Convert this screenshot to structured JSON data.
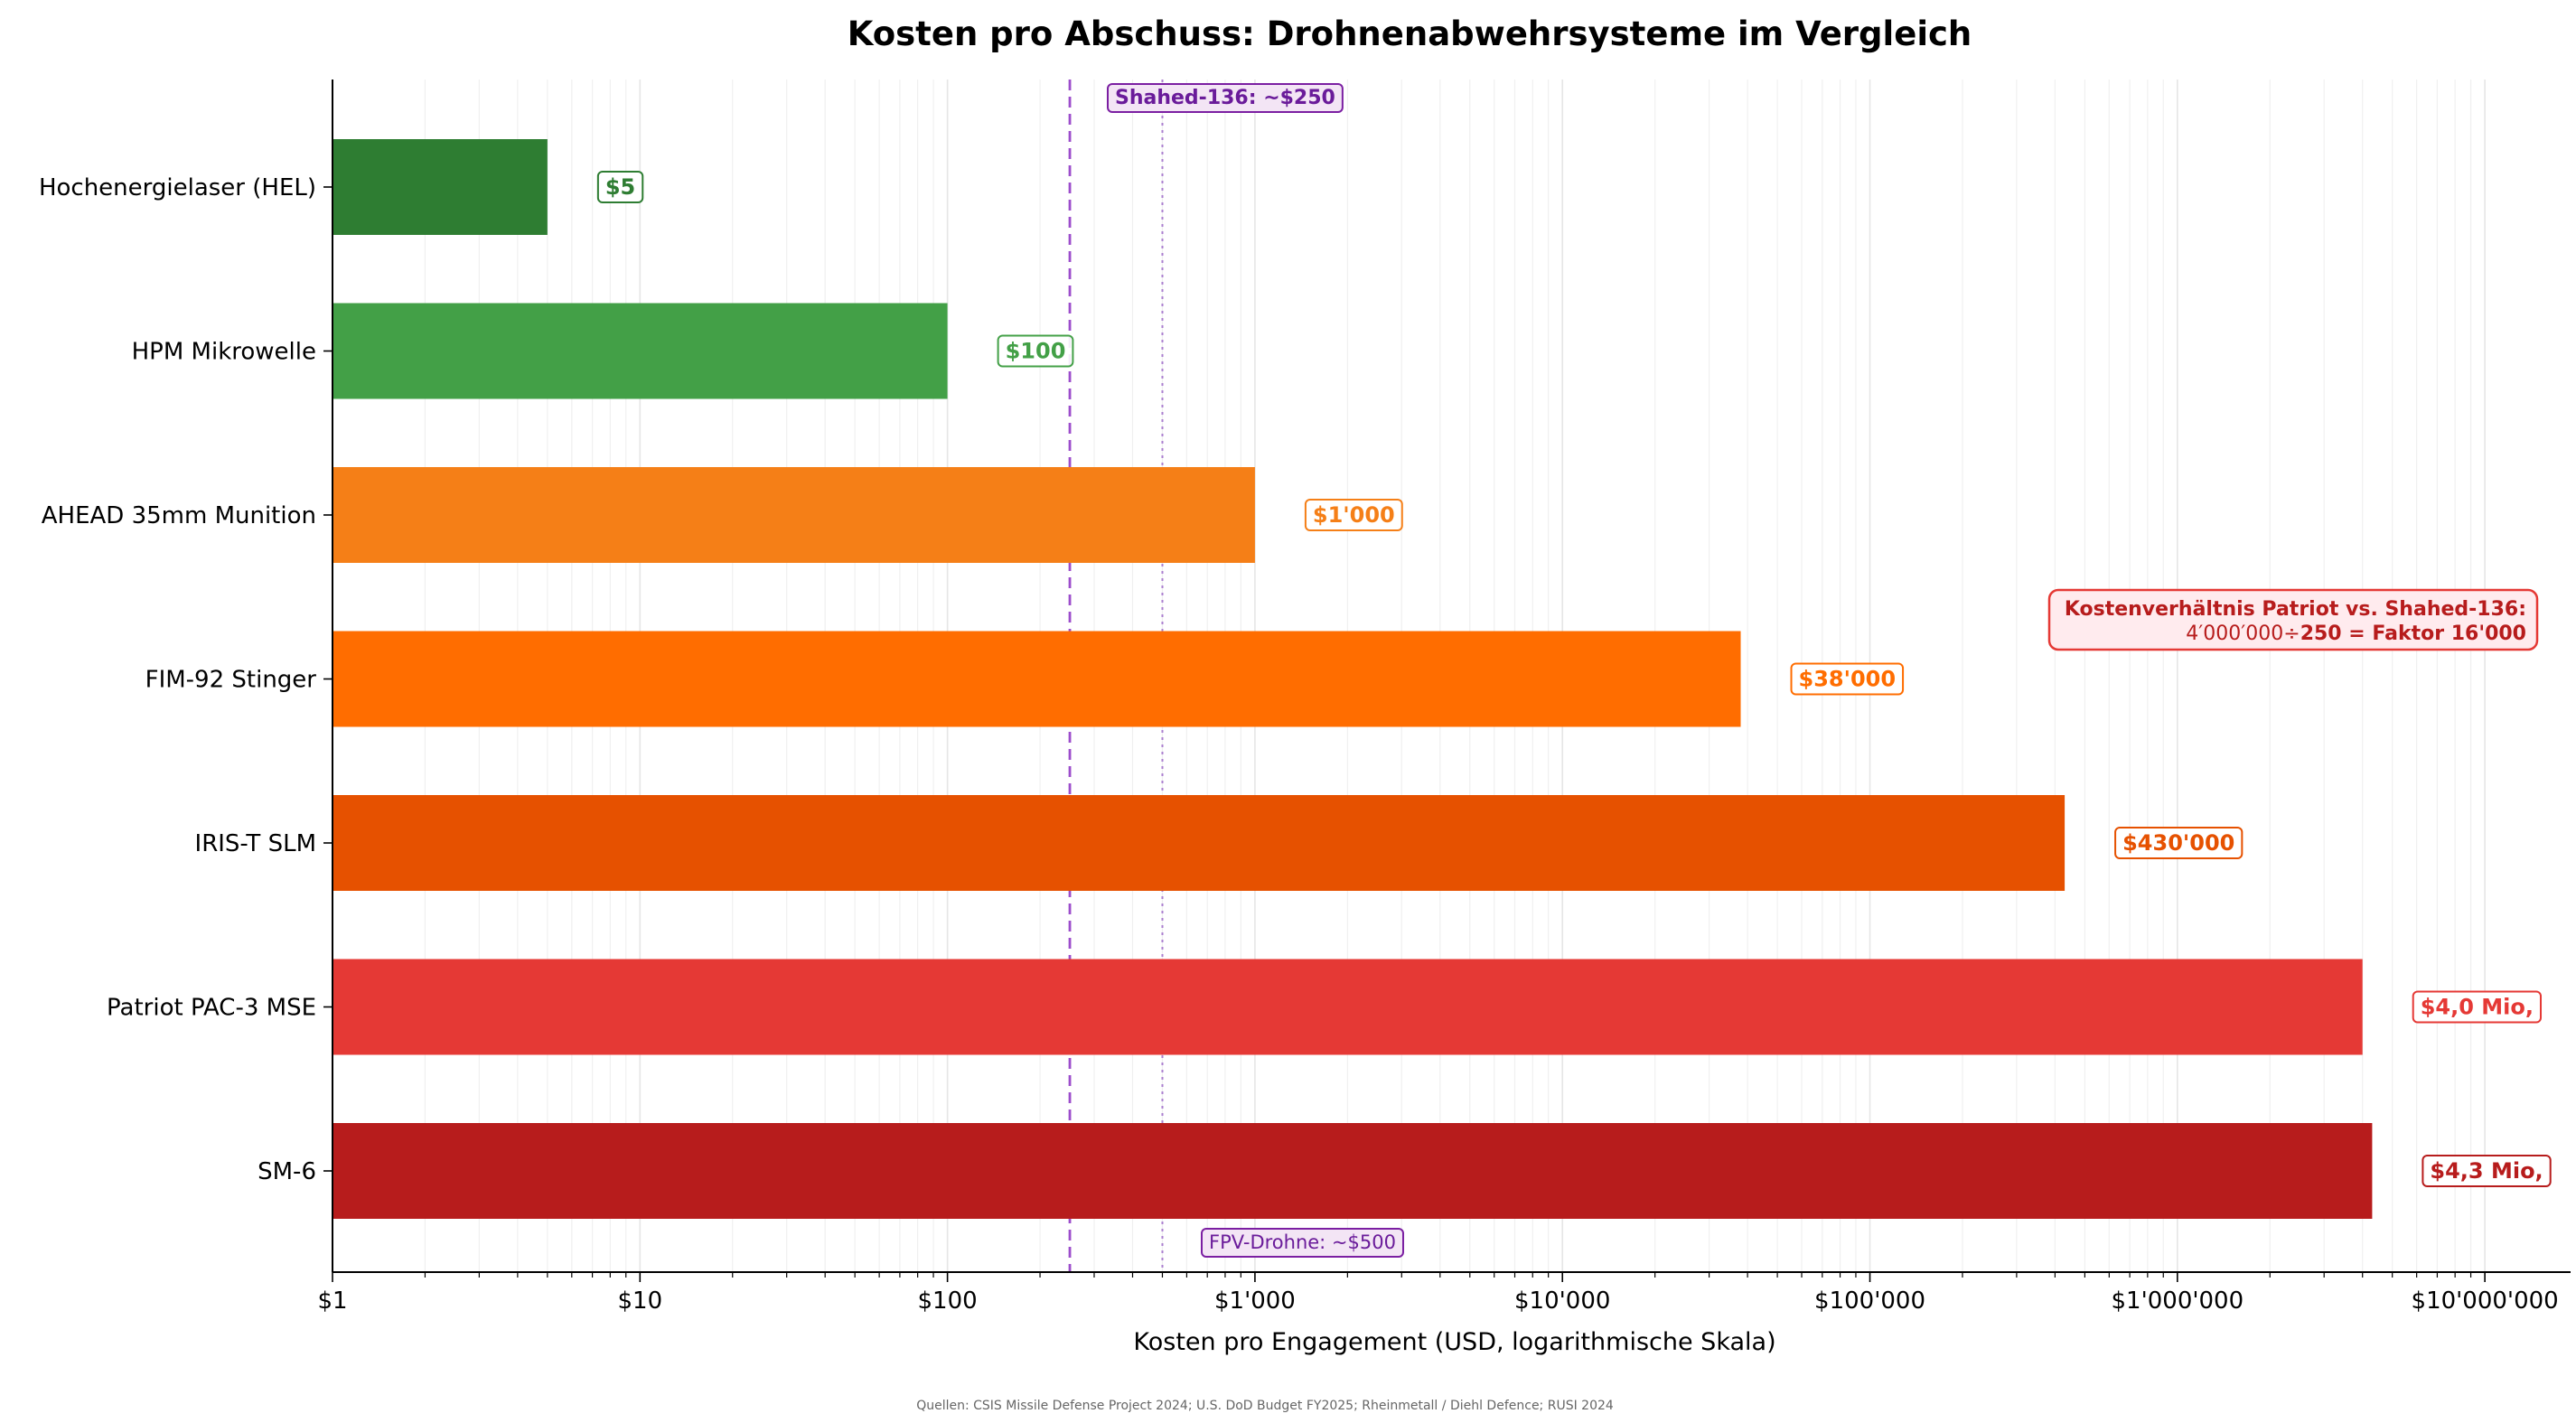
{
  "chart_data": {
    "type": "bar",
    "orientation": "horizontal",
    "title": "Kosten pro Abschuss: Drohnenabwehrsysteme im Vergleich",
    "xlabel": "Kosten pro Engagement (USD, logarithmische Skala)",
    "ylabel": "",
    "xscale": "log",
    "xlim": [
      1,
      19000000
    ],
    "grid": "x minor and major, light",
    "xticks": [
      {
        "value": 1,
        "label": "$1"
      },
      {
        "value": 10,
        "label": "$10"
      },
      {
        "value": 100,
        "label": "$100"
      },
      {
        "value": 1000,
        "label": "$1'000"
      },
      {
        "value": 10000,
        "label": "$10'000"
      },
      {
        "value": 100000,
        "label": "$100'000"
      },
      {
        "value": 1000000,
        "label": "$1'000'000"
      },
      {
        "value": 10000000,
        "label": "$10'000'000"
      }
    ],
    "bars": [
      {
        "category": "Hochenergielaser (HEL)",
        "value": 5,
        "label": "$5",
        "color": "#2e7d32"
      },
      {
        "category": "HPM Mikrowelle",
        "value": 100,
        "label": "$100",
        "color": "#43a047"
      },
      {
        "category": "AHEAD 35mm Munition",
        "value": 1000,
        "label": "$1'000",
        "color": "#f57f17"
      },
      {
        "category": "FIM-92 Stinger",
        "value": 38000,
        "label": "$38'000",
        "color": "#ff6d00"
      },
      {
        "category": "IRIS-T SLM",
        "value": 430000,
        "label": "$430'000",
        "color": "#e65100"
      },
      {
        "category": "Patriot PAC-3 MSE",
        "value": 4000000,
        "label": "$4,0 Mio,",
        "color": "#e53935"
      },
      {
        "category": "SM-6",
        "value": 4300000,
        "label": "$4,3 Mio,",
        "color": "#b71c1c"
      }
    ],
    "reference_lines": [
      {
        "value": 250,
        "style": "dashed",
        "label": "Shahed-136: ~$250",
        "color": "#7b1fa2"
      },
      {
        "value": 500,
        "style": "dotted",
        "label": "FPV-Drohne: ~$500",
        "color": "#7b1fa2"
      }
    ],
    "annotation": {
      "line1": "Kostenverhältnis Patriot vs. Shahed-136:",
      "line2a": "4′000′000÷",
      "line2b": "250 = Faktor 16'000",
      "color": "#b71c1c"
    },
    "footer": "Quellen: CSIS Missile Defense Project 2024; U.S. DoD Budget FY2025; Rheinmetall / Diehl Defence; RUSI 2024"
  }
}
